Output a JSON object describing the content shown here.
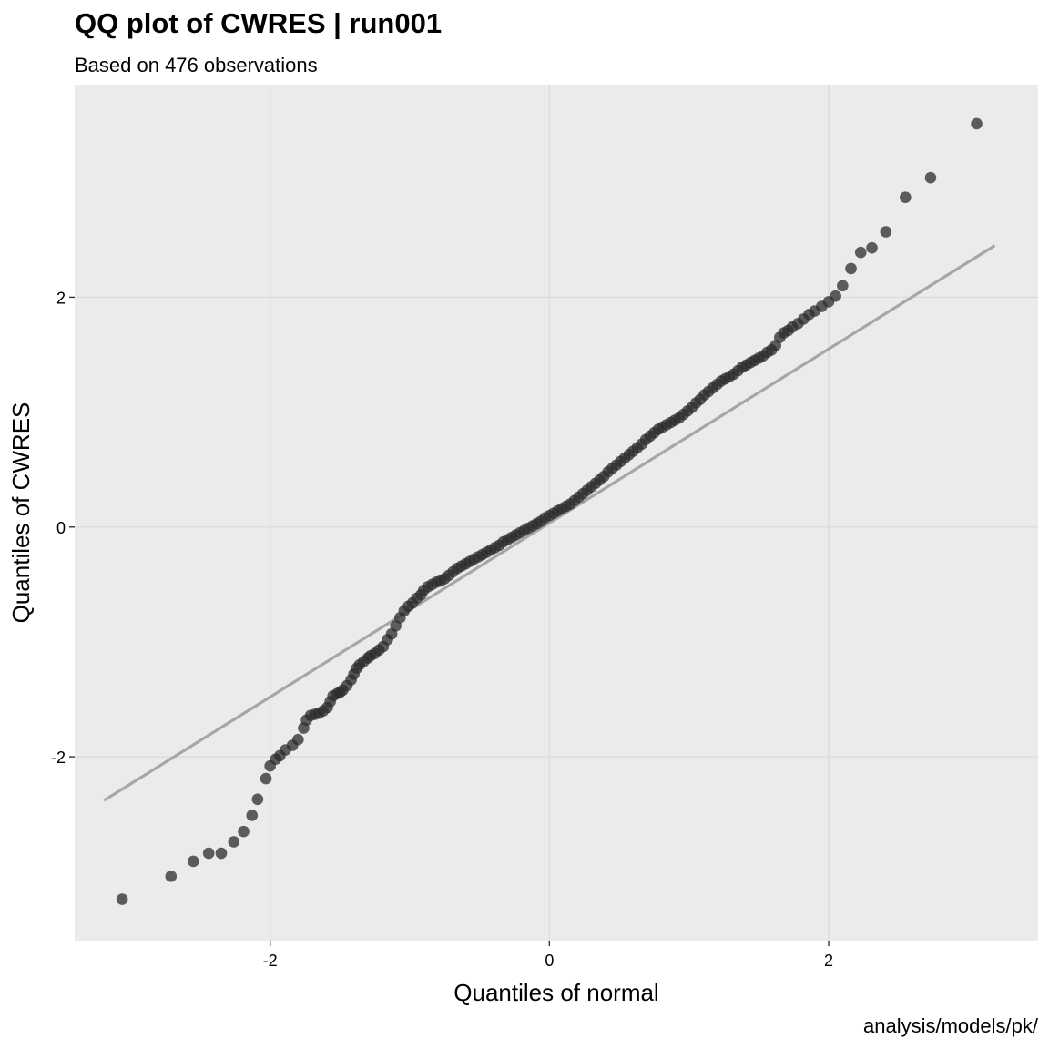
{
  "chart_data": {
    "type": "scatter",
    "title": "QQ plot of CWRES | run001",
    "subtitle": "Based on 476 observations",
    "xlabel": "Quantiles of normal",
    "ylabel": "Quantiles of CWRES",
    "caption": "analysis/models/pk/",
    "xlim": [
      -3.4,
      3.5
    ],
    "ylim": [
      -3.6,
      3.85
    ],
    "x_ticks": [
      -2,
      0,
      2
    ],
    "y_ticks": [
      -2,
      0,
      2
    ],
    "x_tick_labels": [
      "-2",
      "0",
      "2"
    ],
    "y_tick_labels": [
      "-2",
      "0",
      "2"
    ],
    "grid": true,
    "n_observations": 476,
    "reference_line": {
      "x": [
        -3.19,
        3.19
      ],
      "y": [
        -2.38,
        2.45
      ]
    },
    "points": {
      "x": [
        -3.06,
        -2.71,
        -2.55,
        -2.44,
        -2.35,
        -2.26,
        -2.19,
        -2.13,
        -2.09,
        -2.03,
        -2.0,
        -1.96,
        -1.93,
        -1.89,
        -1.84,
        -1.8,
        -1.76,
        -1.74,
        -1.71,
        -1.68,
        -1.65,
        -1.62,
        -1.59,
        -1.57,
        -1.55,
        -1.52,
        -1.5,
        -1.48,
        -1.45,
        -1.42,
        -1.4,
        -1.38,
        -1.36,
        -1.33,
        -1.3,
        -1.28,
        -1.25,
        -1.22,
        -1.19,
        -1.16,
        -1.13,
        -1.1,
        -1.07,
        -1.04,
        -1.01,
        -0.98,
        -0.95,
        -0.92,
        -0.9,
        -0.87,
        -0.84,
        -0.81,
        -0.78,
        -0.75,
        -0.72,
        -0.69,
        -0.66,
        -0.63,
        -0.6,
        -0.57,
        -0.54,
        -0.51,
        -0.48,
        -0.45,
        -0.42,
        -0.39,
        -0.36,
        -0.33,
        -0.3,
        -0.27,
        -0.24,
        -0.21,
        -0.18,
        -0.15,
        -0.12,
        -0.09,
        -0.06,
        -0.03,
        0.0,
        0.03,
        0.06,
        0.09,
        0.12,
        0.15,
        0.18,
        0.21,
        0.24,
        0.27,
        0.3,
        0.33,
        0.36,
        0.39,
        0.42,
        0.45,
        0.48,
        0.51,
        0.54,
        0.57,
        0.6,
        0.63,
        0.66,
        0.69,
        0.72,
        0.75,
        0.78,
        0.81,
        0.84,
        0.87,
        0.9,
        0.93,
        0.96,
        0.99,
        1.02,
        1.05,
        1.08,
        1.11,
        1.14,
        1.17,
        1.2,
        1.23,
        1.26,
        1.29,
        1.32,
        1.35,
        1.38,
        1.41,
        1.44,
        1.47,
        1.5,
        1.53,
        1.56,
        1.59,
        1.62,
        1.65,
        1.68,
        1.71,
        1.74,
        1.78,
        1.82,
        1.86,
        1.9,
        1.95,
        2.0,
        2.05,
        2.1,
        2.16,
        2.23,
        2.31,
        2.41,
        2.55,
        2.73,
        3.06
      ],
      "y": [
        -3.24,
        -3.04,
        -2.91,
        -2.84,
        -2.84,
        -2.74,
        -2.65,
        -2.51,
        -2.37,
        -2.19,
        -2.08,
        -2.02,
        -1.99,
        -1.94,
        -1.9,
        -1.85,
        -1.75,
        -1.68,
        -1.64,
        -1.63,
        -1.62,
        -1.6,
        -1.57,
        -1.52,
        -1.47,
        -1.45,
        -1.44,
        -1.42,
        -1.38,
        -1.33,
        -1.28,
        -1.23,
        -1.2,
        -1.17,
        -1.14,
        -1.12,
        -1.1,
        -1.07,
        -1.04,
        -0.98,
        -0.93,
        -0.86,
        -0.79,
        -0.73,
        -0.69,
        -0.66,
        -0.62,
        -0.59,
        -0.55,
        -0.52,
        -0.5,
        -0.48,
        -0.47,
        -0.45,
        -0.42,
        -0.39,
        -0.36,
        -0.34,
        -0.32,
        -0.3,
        -0.28,
        -0.26,
        -0.24,
        -0.22,
        -0.2,
        -0.18,
        -0.16,
        -0.13,
        -0.11,
        -0.09,
        -0.07,
        -0.05,
        -0.03,
        -0.01,
        0.01,
        0.03,
        0.05,
        0.08,
        0.1,
        0.12,
        0.14,
        0.16,
        0.18,
        0.2,
        0.23,
        0.26,
        0.29,
        0.32,
        0.35,
        0.38,
        0.41,
        0.44,
        0.48,
        0.51,
        0.54,
        0.57,
        0.6,
        0.63,
        0.66,
        0.69,
        0.72,
        0.76,
        0.79,
        0.82,
        0.85,
        0.87,
        0.89,
        0.91,
        0.93,
        0.95,
        0.98,
        1.01,
        1.04,
        1.08,
        1.11,
        1.15,
        1.18,
        1.21,
        1.24,
        1.27,
        1.29,
        1.31,
        1.33,
        1.36,
        1.39,
        1.41,
        1.43,
        1.45,
        1.47,
        1.49,
        1.52,
        1.54,
        1.58,
        1.65,
        1.69,
        1.71,
        1.74,
        1.77,
        1.81,
        1.85,
        1.88,
        1.92,
        1.96,
        2.01,
        2.1,
        2.25,
        2.39,
        2.43,
        2.57,
        2.87,
        3.04,
        3.51
      ]
    }
  }
}
